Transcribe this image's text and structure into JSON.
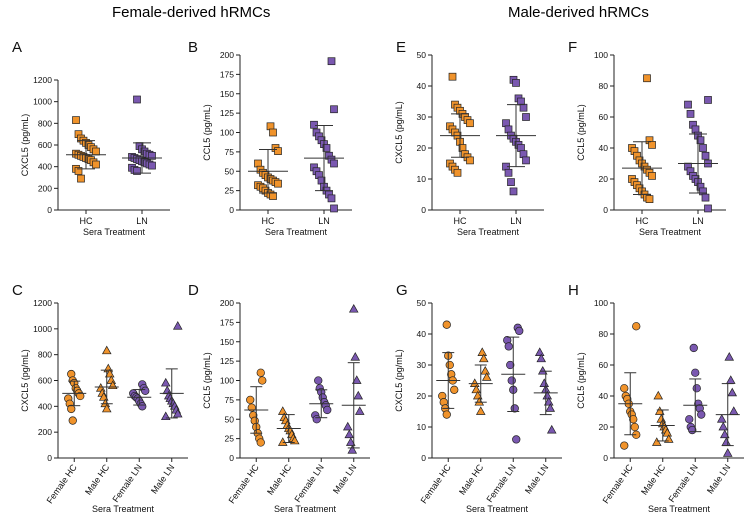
{
  "headers": {
    "female": "Female-derived hRMCs",
    "male": "Male-derived hRMCs"
  },
  "colors": {
    "orange": "#f0932b",
    "purple": "#7a58b0",
    "stroke": "#222222"
  },
  "chart_data": [
    {
      "id": "A",
      "type": "scatter",
      "title": "A",
      "ylabel": "CXCL5 (pg/mL)",
      "xlabel": "Sera Treatment",
      "ylim": [
        0,
        1200
      ],
      "yticks": [
        0,
        200,
        400,
        600,
        800,
        1000,
        1200
      ],
      "categories": [
        "HC",
        "LN"
      ],
      "series": [
        {
          "name": "HC",
          "color": "orange",
          "marker": "square",
          "values": [
            830,
            700,
            660,
            640,
            620,
            600,
            580,
            560,
            540,
            520,
            510,
            500,
            490,
            480,
            470,
            460,
            440,
            420,
            380,
            360,
            290
          ],
          "mean": 510,
          "sd": 130
        },
        {
          "name": "LN",
          "color": "purple",
          "marker": "square",
          "values": [
            1020,
            590,
            560,
            540,
            520,
            510,
            500,
            490,
            480,
            470,
            460,
            450,
            440,
            430,
            420,
            410,
            390,
            370,
            360
          ],
          "mean": 480,
          "sd": 140
        }
      ]
    },
    {
      "id": "B",
      "type": "scatter",
      "title": "B",
      "ylabel": "CCL5 (pg/mL)",
      "xlabel": "Sera Treatment",
      "ylim": [
        0,
        200
      ],
      "yticks": [
        0,
        25,
        50,
        75,
        100,
        125,
        150,
        175,
        200
      ],
      "categories": [
        "HC",
        "LN"
      ],
      "series": [
        {
          "name": "HC",
          "color": "orange",
          "marker": "square",
          "values": [
            108,
            100,
            80,
            76,
            60,
            52,
            48,
            45,
            42,
            40,
            38,
            36,
            34,
            32,
            30,
            28,
            25,
            22,
            20,
            18
          ],
          "mean": 50,
          "sd": 28
        },
        {
          "name": "LN",
          "color": "purple",
          "marker": "square",
          "values": [
            192,
            130,
            110,
            100,
            95,
            90,
            85,
            80,
            70,
            65,
            60,
            55,
            50,
            45,
            38,
            30,
            25,
            20,
            15,
            2
          ],
          "mean": 67,
          "sd": 42
        }
      ]
    },
    {
      "id": "E",
      "type": "scatter",
      "title": "E",
      "ylabel": "CXCL5 (pg/mL)",
      "xlabel": "Sera Treatment",
      "ylim": [
        0,
        50
      ],
      "yticks": [
        0,
        10,
        20,
        30,
        40,
        50
      ],
      "categories": [
        "HC",
        "LN"
      ],
      "series": [
        {
          "name": "HC",
          "color": "orange",
          "marker": "square",
          "values": [
            43,
            34,
            33,
            32,
            31,
            30,
            29,
            28,
            27,
            26,
            25,
            24,
            22,
            20,
            18,
            17,
            16,
            15,
            14,
            13,
            12
          ],
          "mean": 24,
          "sd": 7
        },
        {
          "name": "LN",
          "color": "purple",
          "marker": "square",
          "values": [
            42,
            41,
            36,
            35,
            33,
            30,
            28,
            26,
            24,
            23,
            22,
            21,
            20,
            18,
            16,
            14,
            12,
            9,
            6
          ],
          "mean": 24,
          "sd": 10
        }
      ]
    },
    {
      "id": "F",
      "type": "scatter",
      "title": "F",
      "ylabel": "CCL5 (pg/mL)",
      "xlabel": "Sera Treatment",
      "ylim": [
        0,
        100
      ],
      "yticks": [
        0,
        20,
        40,
        60,
        80,
        100
      ],
      "categories": [
        "HC",
        "LN"
      ],
      "series": [
        {
          "name": "HC",
          "color": "orange",
          "marker": "square",
          "values": [
            85,
            45,
            42,
            40,
            38,
            35,
            32,
            30,
            28,
            26,
            24,
            22,
            20,
            18,
            16,
            14,
            12,
            10,
            8,
            7
          ],
          "mean": 27,
          "sd": 17
        },
        {
          "name": "LN",
          "color": "purple",
          "marker": "square",
          "values": [
            71,
            68,
            62,
            55,
            52,
            48,
            45,
            40,
            35,
            30,
            28,
            25,
            22,
            20,
            18,
            15,
            12,
            8,
            1
          ],
          "mean": 30,
          "sd": 19
        }
      ]
    },
    {
      "id": "C",
      "type": "scatter",
      "title": "C",
      "ylabel": "CXCL5 (pg/mL)",
      "xlabel": "Sera Treatment",
      "ylim": [
        0,
        1200
      ],
      "yticks": [
        0,
        200,
        400,
        600,
        800,
        1000,
        1200
      ],
      "categories": [
        "Female HC",
        "Male HC",
        "Female LN",
        "Male LN"
      ],
      "series": [
        {
          "name": "Female HC",
          "color": "orange",
          "marker": "circle",
          "values": [
            650,
            600,
            580,
            540,
            520,
            500,
            480,
            460,
            420,
            380,
            290
          ],
          "mean": 500,
          "sd": 95
        },
        {
          "name": "Male HC",
          "color": "orange",
          "marker": "triangle",
          "values": [
            830,
            690,
            650,
            600,
            560,
            540,
            500,
            470,
            420,
            380
          ],
          "mean": 550,
          "sd": 130
        },
        {
          "name": "Female LN",
          "color": "purple",
          "marker": "circle",
          "values": [
            570,
            540,
            520,
            500,
            480,
            470,
            460,
            440,
            420,
            400
          ],
          "mean": 470,
          "sd": 60
        },
        {
          "name": "Male LN",
          "color": "purple",
          "marker": "triangle",
          "values": [
            1020,
            580,
            520,
            480,
            460,
            440,
            420,
            400,
            370,
            340,
            320
          ],
          "mean": 500,
          "sd": 190
        }
      ]
    },
    {
      "id": "D",
      "type": "scatter",
      "title": "D",
      "ylabel": "CCL5 (pg/mL)",
      "xlabel": "Sera Treatment",
      "ylim": [
        0,
        200
      ],
      "yticks": [
        0,
        25,
        50,
        75,
        100,
        125,
        150,
        175,
        200
      ],
      "categories": [
        "Female HC",
        "Male HC",
        "Female LN",
        "Male LN"
      ],
      "series": [
        {
          "name": "Female HC",
          "color": "orange",
          "marker": "circle",
          "values": [
            110,
            100,
            75,
            65,
            55,
            48,
            40,
            32,
            25,
            20
          ],
          "mean": 62,
          "sd": 30
        },
        {
          "name": "Male HC",
          "color": "orange",
          "marker": "triangle",
          "values": [
            60,
            52,
            48,
            42,
            38,
            35,
            30,
            25,
            22,
            20
          ],
          "mean": 38,
          "sd": 18
        },
        {
          "name": "Female LN",
          "color": "purple",
          "marker": "circle",
          "values": [
            100,
            90,
            85,
            78,
            72,
            68,
            62,
            55,
            50
          ],
          "mean": 70,
          "sd": 18
        },
        {
          "name": "Male LN",
          "color": "purple",
          "marker": "triangle",
          "values": [
            192,
            130,
            100,
            80,
            60,
            40,
            30,
            20,
            10
          ],
          "mean": 68,
          "sd": 55
        }
      ]
    },
    {
      "id": "G",
      "type": "scatter",
      "title": "G",
      "ylabel": "CXCL5 (pg/mL)",
      "xlabel": "Sera Treatment",
      "ylim": [
        0,
        50
      ],
      "yticks": [
        0,
        10,
        20,
        30,
        40,
        50
      ],
      "categories": [
        "Female HC",
        "Male HC",
        "Female LN",
        "Male LN"
      ],
      "series": [
        {
          "name": "Female HC",
          "color": "orange",
          "marker": "circle",
          "values": [
            43,
            33,
            30,
            27,
            25,
            22,
            20,
            18,
            16,
            14
          ],
          "mean": 25,
          "sd": 9
        },
        {
          "name": "Male HC",
          "color": "orange",
          "marker": "triangle",
          "values": [
            34,
            32,
            28,
            26,
            24,
            22,
            20,
            18,
            15
          ],
          "mean": 24,
          "sd": 6
        },
        {
          "name": "Female LN",
          "color": "purple",
          "marker": "circle",
          "values": [
            42,
            41,
            38,
            36,
            30,
            25,
            22,
            16,
            6
          ],
          "mean": 27,
          "sd": 12
        },
        {
          "name": "Male LN",
          "color": "purple",
          "marker": "triangle",
          "values": [
            34,
            32,
            28,
            24,
            22,
            20,
            18,
            16,
            9
          ],
          "mean": 21,
          "sd": 7
        }
      ]
    },
    {
      "id": "H",
      "type": "scatter",
      "title": "H",
      "ylabel": "CCL5 (pg/mL)",
      "xlabel": "Sera Treatment",
      "ylim": [
        0,
        100
      ],
      "yticks": [
        0,
        20,
        40,
        60,
        80,
        100
      ],
      "categories": [
        "Female HC",
        "Male HC",
        "Female LN",
        "Male LN"
      ],
      "series": [
        {
          "name": "Female HC",
          "color": "orange",
          "marker": "circle",
          "values": [
            85,
            45,
            40,
            38,
            35,
            30,
            28,
            25,
            20,
            15,
            8
          ],
          "mean": 35,
          "sd": 20
        },
        {
          "name": "Male HC",
          "color": "orange",
          "marker": "triangle",
          "values": [
            40,
            30,
            25,
            22,
            20,
            18,
            16,
            12,
            10
          ],
          "mean": 21,
          "sd": 10
        },
        {
          "name": "Female LN",
          "color": "purple",
          "marker": "circle",
          "values": [
            71,
            55,
            45,
            35,
            32,
            28,
            25,
            20,
            18
          ],
          "mean": 34,
          "sd": 17
        },
        {
          "name": "Male LN",
          "color": "purple",
          "marker": "triangle",
          "values": [
            65,
            50,
            42,
            30,
            25,
            20,
            15,
            10,
            3
          ],
          "mean": 28,
          "sd": 20
        }
      ]
    }
  ]
}
